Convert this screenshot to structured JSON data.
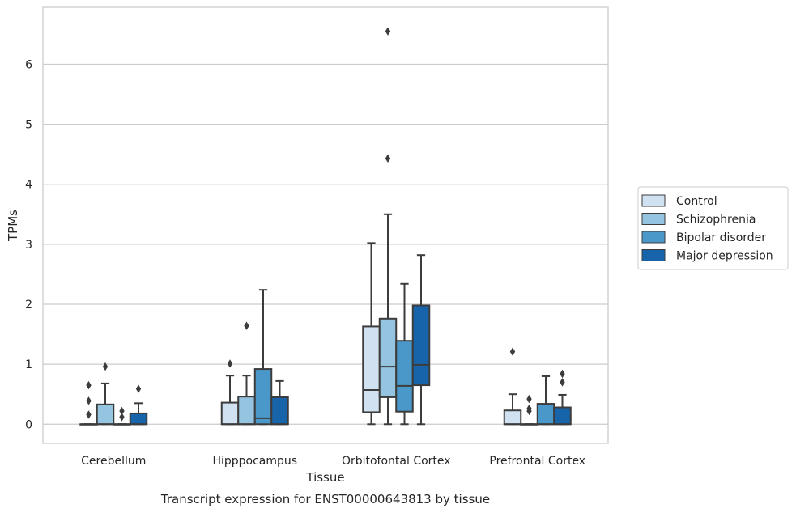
{
  "chart_data": {
    "type": "box",
    "title": "",
    "caption": "Transcript expression for ENST00000643813 by tissue",
    "xlabel": "Tissue",
    "ylabel": "TPMs",
    "ylim": [
      -0.32,
      6.95
    ],
    "yticks": [
      0,
      1,
      2,
      3,
      4,
      5,
      6
    ],
    "grid": "horizontal",
    "legend_position": "right",
    "categories": [
      "Cerebellum",
      "Hipppocampus",
      "Orbitofontal Cortex",
      "Prefrontal Cortex"
    ],
    "series": [
      {
        "name": "Control",
        "color": "#d0e1f2",
        "boxes": [
          {
            "min": 0,
            "q1": 0,
            "median": 0,
            "q3": 0,
            "max": 0,
            "outliers": [
              0.65,
              0.39,
              0.16
            ]
          },
          {
            "min": 0,
            "q1": 0,
            "median": 0,
            "q3": 0.36,
            "max": 0.81,
            "outliers": [
              1.01
            ]
          },
          {
            "min": 0,
            "q1": 0.2,
            "median": 0.57,
            "q3": 1.63,
            "max": 3.02,
            "outliers": []
          },
          {
            "min": 0,
            "q1": 0,
            "median": 0,
            "q3": 0.23,
            "max": 0.5,
            "outliers": [
              1.21
            ]
          }
        ]
      },
      {
        "name": "Schizophrenia",
        "color": "#94c4df",
        "boxes": [
          {
            "min": 0,
            "q1": 0,
            "median": 0,
            "q3": 0.33,
            "max": 0.68,
            "outliers": [
              0.96
            ]
          },
          {
            "min": 0,
            "q1": 0,
            "median": 0,
            "q3": 0.46,
            "max": 0.81,
            "outliers": [
              1.64
            ]
          },
          {
            "min": 0,
            "q1": 0.45,
            "median": 0.96,
            "q3": 1.76,
            "max": 3.5,
            "outliers": [
              6.55,
              4.43
            ]
          },
          {
            "min": 0,
            "q1": 0,
            "median": 0,
            "q3": 0,
            "max": 0,
            "outliers": [
              0.42,
              0.26,
              0.22
            ]
          }
        ]
      },
      {
        "name": "Bipolar disorder",
        "color": "#4a98c9",
        "boxes": [
          {
            "min": 0,
            "q1": 0,
            "median": 0,
            "q3": 0,
            "max": 0,
            "outliers": [
              0.22,
              0.12
            ]
          },
          {
            "min": 0,
            "q1": 0,
            "median": 0.1,
            "q3": 0.92,
            "max": 2.24,
            "outliers": []
          },
          {
            "min": 0,
            "q1": 0.21,
            "median": 0.64,
            "q3": 1.39,
            "max": 2.34,
            "outliers": []
          },
          {
            "min": 0,
            "q1": 0,
            "median": 0,
            "q3": 0.34,
            "max": 0.8,
            "outliers": []
          }
        ]
      },
      {
        "name": "Major depression",
        "color": "#1764ab",
        "boxes": [
          {
            "min": 0,
            "q1": 0,
            "median": 0,
            "q3": 0.18,
            "max": 0.35,
            "outliers": [
              0.59
            ]
          },
          {
            "min": 0,
            "q1": 0,
            "median": 0,
            "q3": 0.45,
            "max": 0.72,
            "outliers": []
          },
          {
            "min": 0,
            "q1": 0.65,
            "median": 0.99,
            "q3": 1.98,
            "max": 2.82,
            "outliers": []
          },
          {
            "min": 0,
            "q1": 0,
            "median": 0,
            "q3": 0.28,
            "max": 0.49,
            "outliers": [
              0.84,
              0.7
            ]
          }
        ]
      }
    ]
  }
}
